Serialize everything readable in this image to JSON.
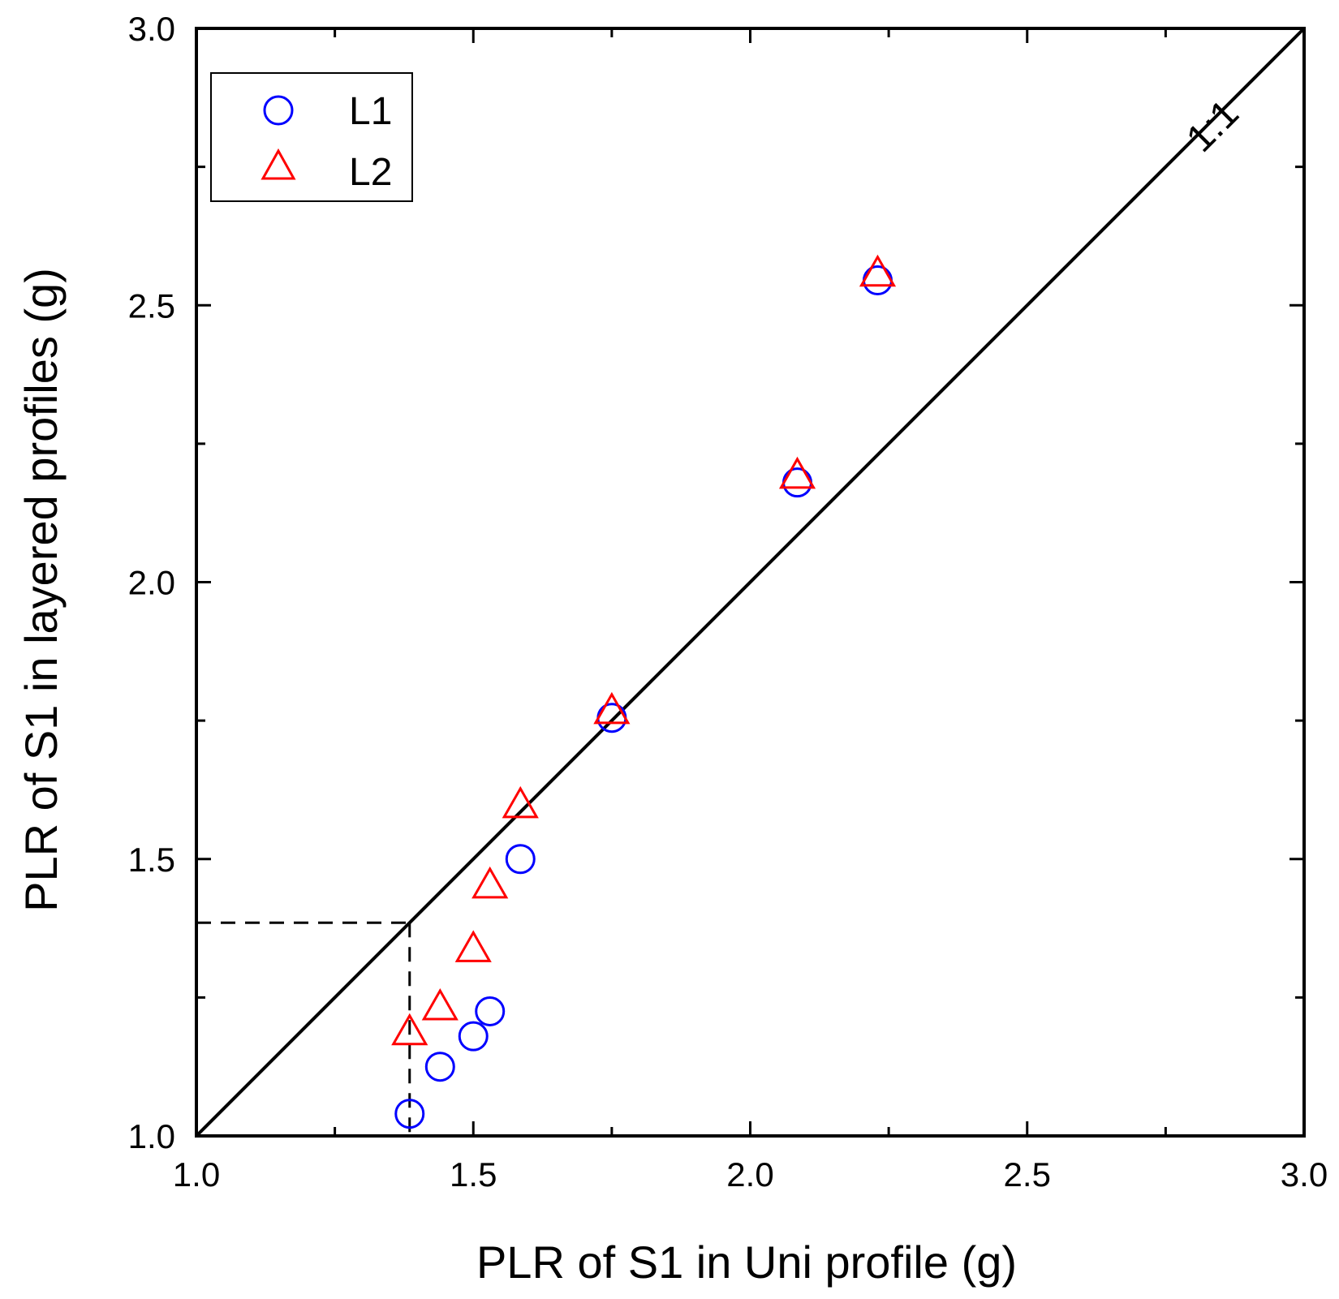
{
  "chart_data": {
    "type": "scatter",
    "title": "",
    "xlabel": "PLR of S1 in Uni profile (g)",
    "ylabel": "PLR of S1 in layered profiles (g)",
    "xlim": [
      1.0,
      3.0
    ],
    "ylim": [
      1.0,
      3.0
    ],
    "x_ticks": [
      "1.0",
      "1.5",
      "2.0",
      "2.5",
      "3.0"
    ],
    "y_ticks": [
      "1.0",
      "1.5",
      "2.0",
      "2.5",
      "3.0"
    ],
    "grid": false,
    "legend_position": "top-left",
    "series": [
      {
        "name": "L1",
        "marker": "circle",
        "color": "#0000ff",
        "x": [
          1.385,
          1.44,
          1.5,
          1.53,
          1.585,
          1.75,
          2.085,
          2.23
        ],
        "y": [
          1.04,
          1.125,
          1.18,
          1.225,
          1.5,
          1.755,
          2.18,
          2.545
        ]
      },
      {
        "name": "L2",
        "marker": "triangle",
        "color": "#ff0000",
        "x": [
          1.385,
          1.44,
          1.5,
          1.53,
          1.585,
          1.75,
          2.085,
          2.23
        ],
        "y": [
          1.185,
          1.23,
          1.335,
          1.45,
          1.595,
          1.765,
          2.19,
          2.555
        ]
      }
    ],
    "reference_line": {
      "label": "1:1",
      "from": [
        1.0,
        1.0
      ],
      "to": [
        3.0,
        3.0
      ]
    },
    "threshold_guide": {
      "x": 1.385,
      "y": 1.385
    }
  }
}
